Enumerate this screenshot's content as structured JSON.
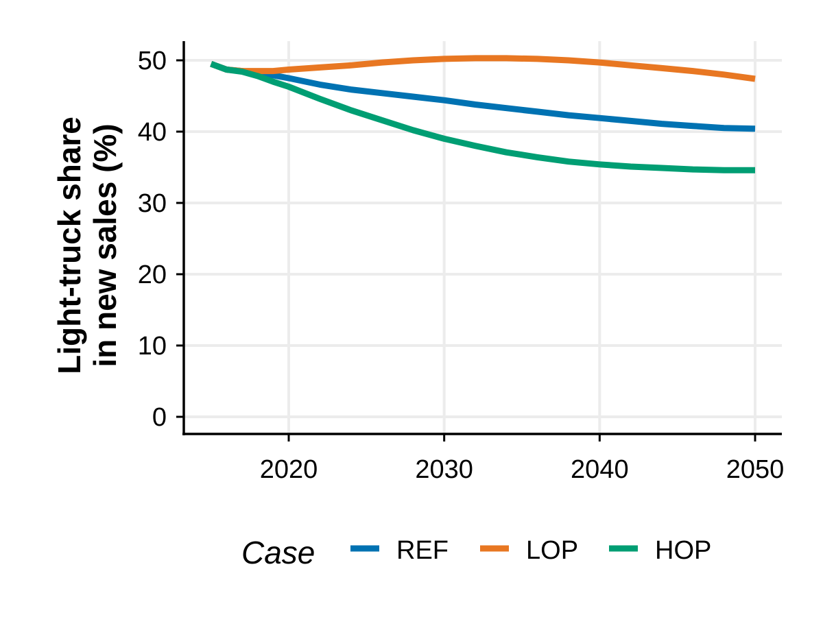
{
  "chart_data": {
    "type": "line",
    "title": "",
    "xlabel": "",
    "ylabel_lines": [
      "Light-truck share",
      "in new sales (%)"
    ],
    "xlim": [
      2015,
      2050
    ],
    "ylim": [
      0,
      50
    ],
    "x_ticks": [
      "2020",
      "2030",
      "2040",
      "2050"
    ],
    "y_ticks": [
      "0",
      "10",
      "20",
      "30",
      "40",
      "50"
    ],
    "grid": true,
    "legend": {
      "title": "Case",
      "position": "bottom"
    },
    "x": [
      2015,
      2016,
      2017,
      2018,
      2019,
      2020,
      2022,
      2024,
      2026,
      2028,
      2030,
      2032,
      2034,
      2036,
      2038,
      2040,
      2042,
      2044,
      2046,
      2048,
      2050
    ],
    "series": [
      {
        "name": "REF",
        "color": "#0072B2",
        "values": [
          49.5,
          48.7,
          48.5,
          48.2,
          47.9,
          47.5,
          46.6,
          45.9,
          45.4,
          44.9,
          44.4,
          43.8,
          43.3,
          42.8,
          42.3,
          41.9,
          41.5,
          41.1,
          40.8,
          40.5,
          40.4
        ]
      },
      {
        "name": "LOP",
        "color": "#E87722",
        "values": [
          49.5,
          48.7,
          48.5,
          48.5,
          48.5,
          48.7,
          49.0,
          49.3,
          49.7,
          50.0,
          50.2,
          50.3,
          50.3,
          50.2,
          50.0,
          49.7,
          49.3,
          48.9,
          48.5,
          48.0,
          47.4
        ]
      },
      {
        "name": "HOP",
        "color": "#009E73",
        "values": [
          49.5,
          48.7,
          48.4,
          47.8,
          47.0,
          46.3,
          44.6,
          43.0,
          41.6,
          40.2,
          39.0,
          38.0,
          37.1,
          36.4,
          35.8,
          35.4,
          35.1,
          34.9,
          34.7,
          34.6,
          34.6
        ]
      }
    ]
  }
}
